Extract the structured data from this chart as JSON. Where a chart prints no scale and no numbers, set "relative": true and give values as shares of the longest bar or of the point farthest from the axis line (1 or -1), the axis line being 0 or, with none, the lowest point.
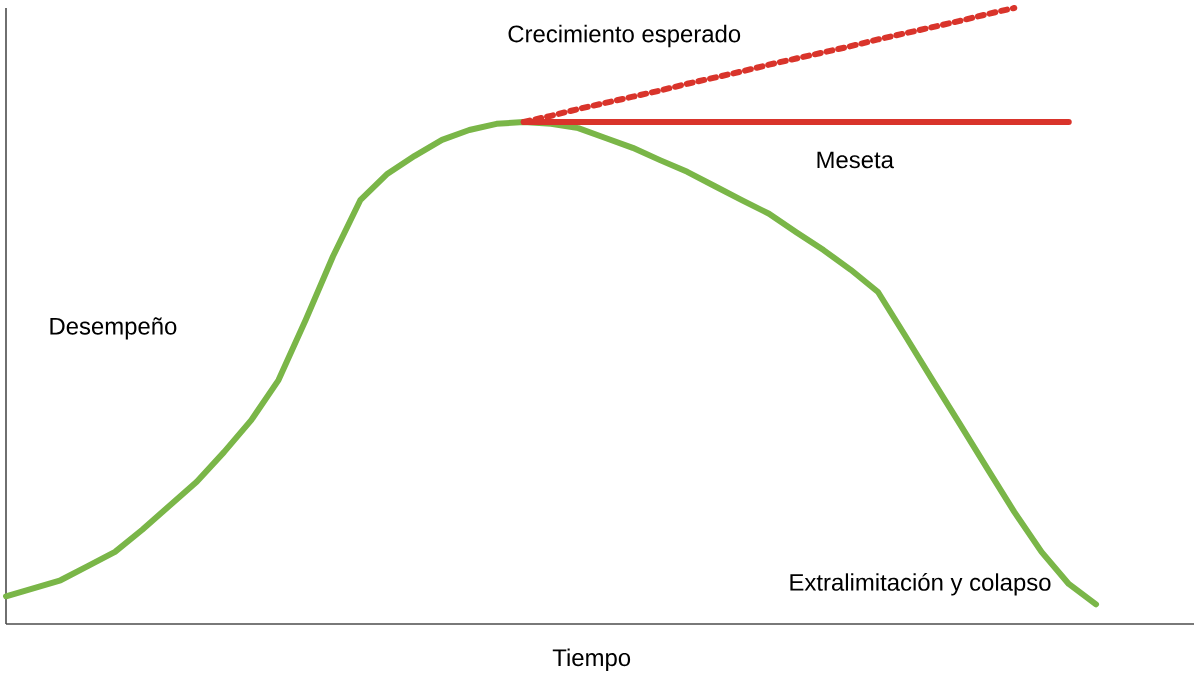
{
  "chart_data": {
    "type": "line",
    "relative": true,
    "xlabel": "Tiempo",
    "ylabel": "Desempeño",
    "legend": false,
    "marker": "none",
    "categories": [
      null,
      null,
      null,
      null,
      null,
      null,
      null,
      null,
      null,
      null,
      null,
      null,
      null,
      null,
      null,
      null,
      null,
      null,
      null,
      null,
      null,
      null,
      null,
      null,
      null,
      null,
      null,
      null,
      null,
      null,
      null,
      null,
      null,
      null,
      null,
      null,
      null,
      null,
      null,
      null,
      null
    ],
    "series": [
      {
        "name": "Extralimitación y colapso",
        "color": "#7ab648",
        "line_style": "solid",
        "values": [
          0.045,
          0.058,
          0.071,
          0.094,
          0.117,
          0.153,
          0.192,
          0.231,
          0.279,
          0.331,
          0.396,
          0.494,
          0.597,
          0.688,
          0.731,
          0.76,
          0.786,
          0.802,
          0.812,
          0.815,
          0.812,
          0.805,
          0.789,
          0.773,
          0.753,
          0.734,
          0.711,
          0.688,
          0.666,
          0.636,
          0.607,
          0.575,
          0.539,
          0.468,
          0.396,
          0.325,
          0.253,
          0.182,
          0.117,
          0.065,
          0.032
        ]
      },
      {
        "name": "Meseta",
        "color": "#d9342b",
        "line_style": "solid",
        "values": [
          null,
          null,
          null,
          null,
          null,
          null,
          null,
          null,
          null,
          null,
          null,
          null,
          null,
          null,
          null,
          null,
          null,
          null,
          null,
          0.815,
          0.815,
          0.815,
          0.815,
          0.815,
          0.815,
          0.815,
          0.815,
          0.815,
          0.815,
          0.815,
          0.815,
          0.815,
          0.815,
          0.815,
          0.815,
          0.815,
          0.815,
          0.815,
          0.815,
          0.815,
          null
        ]
      },
      {
        "name": "Crecimiento esperado",
        "color": "#d9342b",
        "line_style": "dashed",
        "values": [
          null,
          null,
          null,
          null,
          null,
          null,
          null,
          null,
          null,
          null,
          null,
          null,
          null,
          null,
          null,
          null,
          null,
          null,
          null,
          0.815,
          0.825,
          0.836,
          0.846,
          0.856,
          0.866,
          0.877,
          0.887,
          0.897,
          0.908,
          0.918,
          0.928,
          0.938,
          0.949,
          0.959,
          0.969,
          0.979,
          0.99,
          1.0,
          null,
          null,
          null
        ]
      }
    ]
  }
}
